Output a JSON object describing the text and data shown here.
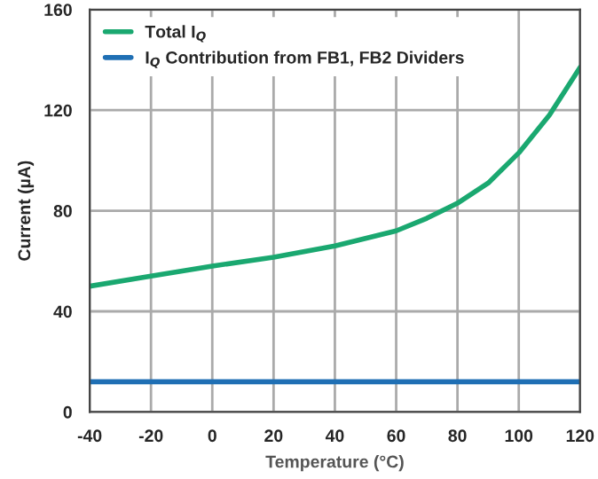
{
  "chart_data": {
    "type": "line",
    "xlabel": "Temperature (°C)",
    "ylabel": "Current (µA)",
    "x": [
      -40,
      -20,
      0,
      20,
      40,
      60,
      70,
      80,
      90,
      100,
      110,
      120
    ],
    "series": [
      {
        "name": "Total I$_{Q}$",
        "color": "#1aa870",
        "values": [
          50,
          54,
          58,
          61.5,
          66,
          72,
          77,
          83,
          91,
          103,
          118,
          137
        ]
      },
      {
        "name": "I$_{Q}$ Contribution from FB1, FB2 Dividers",
        "color": "#1f6fb4",
        "values": [
          12,
          12,
          12,
          12,
          12,
          12,
          12,
          12,
          12,
          12,
          12,
          12
        ]
      }
    ],
    "xlim": [
      -40,
      120
    ],
    "xticks": [
      -40,
      -20,
      0,
      20,
      40,
      60,
      80,
      100,
      120
    ],
    "ylim": [
      0,
      160
    ],
    "yticks": [
      0,
      40,
      80,
      120,
      160
    ],
    "grid": true,
    "legend": "top left",
    "marker": "none",
    "line_style": "solid"
  }
}
